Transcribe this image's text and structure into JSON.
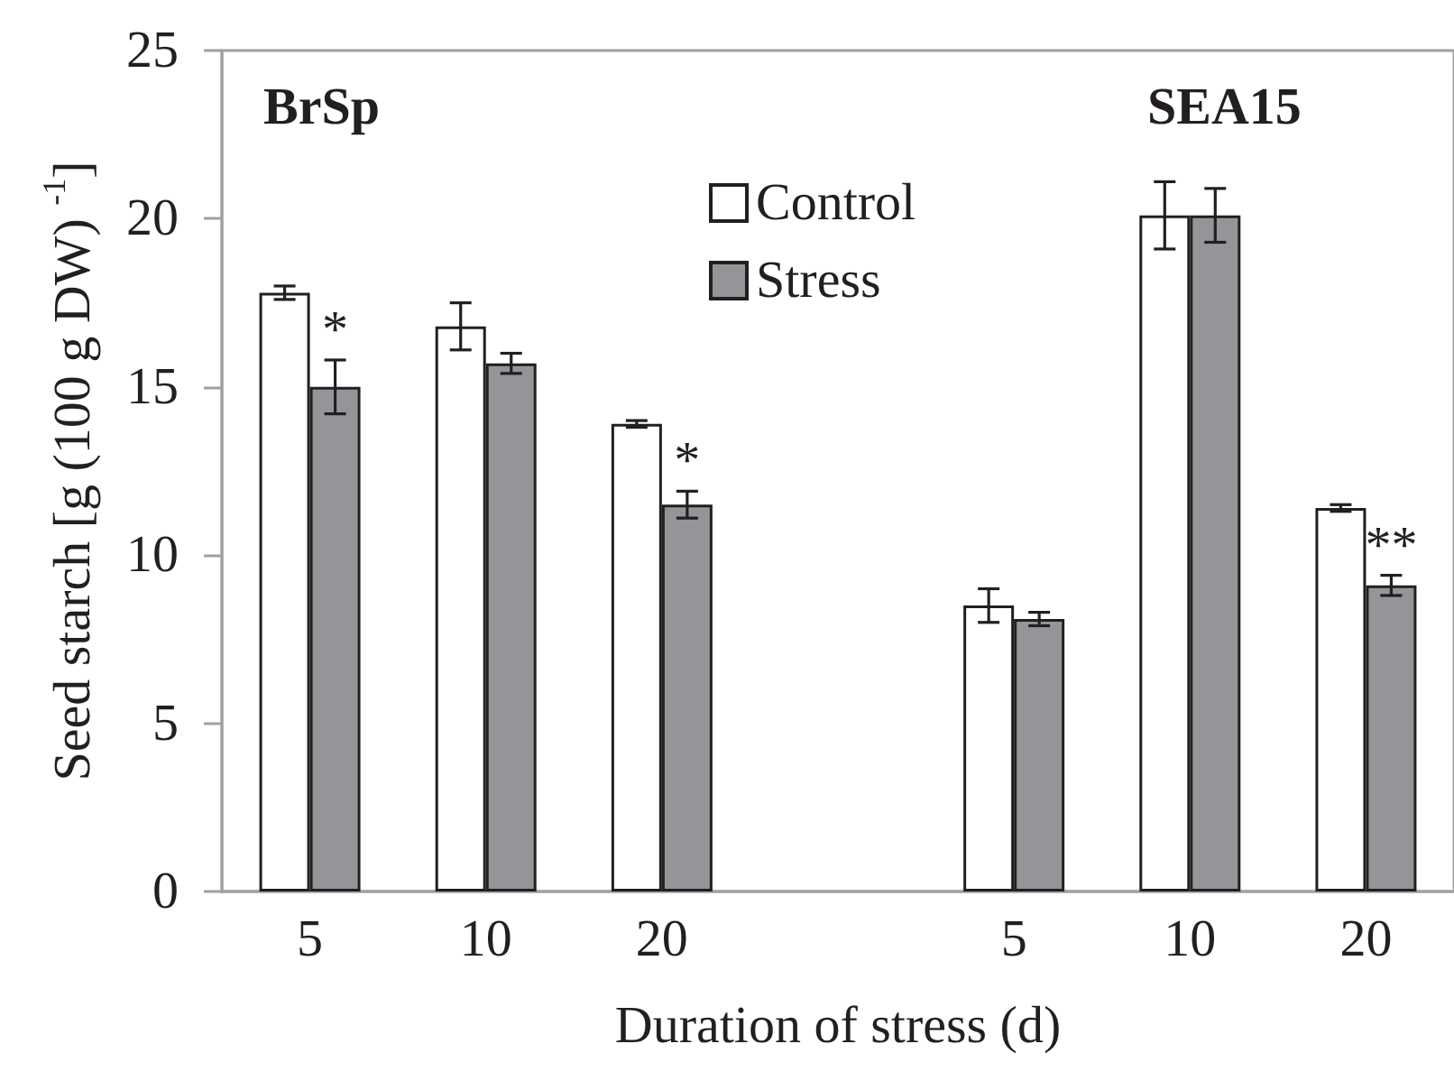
{
  "chart_data": {
    "type": "bar",
    "xlabel": "Duration of stress (d)",
    "ylabel": "Seed starch [g (100 g DW) $^{-1}$]",
    "categories": [
      "5",
      "10",
      "20",
      null,
      "5",
      "10",
      "20"
    ],
    "series": [
      {
        "name": "Control",
        "color": "#ffffff",
        "values": [
          17.8,
          16.8,
          13.9,
          null,
          8.5,
          20.1,
          11.4
        ],
        "errors": [
          0.2,
          0.7,
          0.1,
          null,
          0.5,
          1.0,
          0.1
        ]
      },
      {
        "name": "Stress",
        "color": "#939598",
        "values": [
          15.0,
          15.7,
          11.5,
          null,
          8.1,
          20.1,
          9.1
        ],
        "errors": [
          0.8,
          0.3,
          0.4,
          null,
          0.2,
          0.8,
          0.3
        ],
        "value_labels": [
          "*",
          null,
          "*",
          null,
          null,
          null,
          "**"
        ]
      }
    ],
    "ylim": [
      0,
      25
    ],
    "yticks": [
      0,
      5,
      10,
      15,
      20,
      25
    ],
    "grid": false,
    "legend": "top",
    "annotations": [
      "BrSp",
      "SEA15"
    ]
  }
}
